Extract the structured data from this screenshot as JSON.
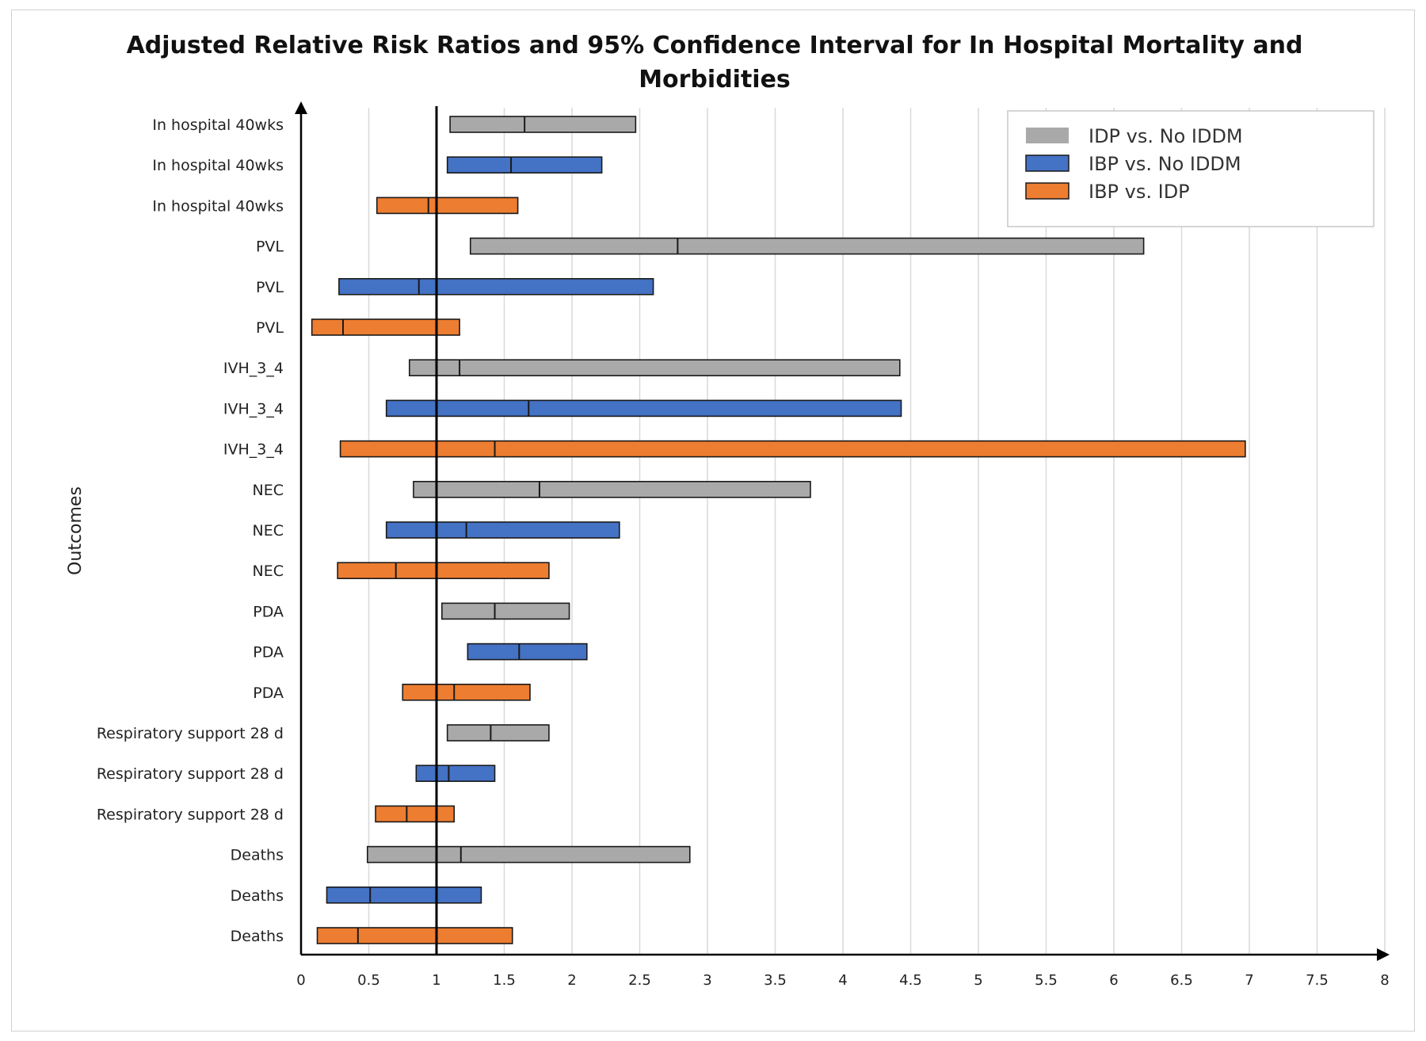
{
  "chart_data": {
    "type": "bar",
    "subtype": "floating-horizontal-interval",
    "title_lines": [
      "Adjusted Relative Risk Ratios and 95% Confidence Interval for In Hospital Mortality and",
      "Morbidities"
    ],
    "xlabel": "",
    "ylabel": "Outcomes",
    "xlim": [
      0,
      8
    ],
    "xticks": [
      0,
      0.5,
      1,
      1.5,
      2,
      2.5,
      3,
      3.5,
      4,
      4.5,
      5,
      5.5,
      6,
      6.5,
      7,
      7.5,
      8
    ],
    "xtick_labels": [
      "0",
      "0.5",
      "1",
      "1.5",
      "2",
      "2.5",
      "3",
      "3.5",
      "4",
      "4.5",
      "5",
      "5.5",
      "6",
      "6.5",
      "7",
      "7.5",
      "8"
    ],
    "reference_line": 1,
    "grid": "vertical",
    "legend_position": "top-right",
    "series": [
      {
        "name": "IDP vs. No IDDM",
        "color": "#a9a9a9"
      },
      {
        "name": "IBP vs. No IDDM",
        "color": "#4472c4"
      },
      {
        "name": "IBP vs. IDP",
        "color": "#ed7d31"
      }
    ],
    "rows": [
      {
        "label": "In hospital 40wks",
        "series": 0,
        "low": 1.1,
        "est": 1.65,
        "high": 2.47
      },
      {
        "label": "In hospital 40wks",
        "series": 1,
        "low": 1.08,
        "est": 1.55,
        "high": 2.22
      },
      {
        "label": "In hospital 40wks",
        "series": 2,
        "low": 0.56,
        "est": 0.94,
        "high": 1.6
      },
      {
        "label": "PVL",
        "series": 0,
        "low": 1.25,
        "est": 2.78,
        "high": 6.22
      },
      {
        "label": "PVL",
        "series": 1,
        "low": 0.28,
        "est": 0.87,
        "high": 2.6
      },
      {
        "label": "PVL",
        "series": 2,
        "low": 0.08,
        "est": 0.31,
        "high": 1.17
      },
      {
        "label": "IVH_3_4",
        "series": 0,
        "low": 0.8,
        "est": 1.17,
        "high": 4.42
      },
      {
        "label": "IVH_3_4",
        "series": 1,
        "low": 0.63,
        "est": 1.68,
        "high": 4.43
      },
      {
        "label": "IVH_3_4",
        "series": 2,
        "low": 0.29,
        "est": 1.43,
        "high": 6.97
      },
      {
        "label": "NEC",
        "series": 0,
        "low": 0.83,
        "est": 1.76,
        "high": 3.76
      },
      {
        "label": "NEC",
        "series": 1,
        "low": 0.63,
        "est": 1.22,
        "high": 2.35
      },
      {
        "label": "NEC",
        "series": 2,
        "low": 0.27,
        "est": 0.7,
        "high": 1.83
      },
      {
        "label": "PDA",
        "series": 0,
        "low": 1.04,
        "est": 1.43,
        "high": 1.98
      },
      {
        "label": "PDA",
        "series": 1,
        "low": 1.23,
        "est": 1.61,
        "high": 2.11
      },
      {
        "label": "PDA",
        "series": 2,
        "low": 0.75,
        "est": 1.13,
        "high": 1.69
      },
      {
        "label": "Respiratory support  28 d",
        "series": 0,
        "low": 1.08,
        "est": 1.4,
        "high": 1.83
      },
      {
        "label": "Respiratory support  28 d",
        "series": 1,
        "low": 0.85,
        "est": 1.09,
        "high": 1.43
      },
      {
        "label": "Respiratory support  28 d",
        "series": 2,
        "low": 0.55,
        "est": 0.78,
        "high": 1.13
      },
      {
        "label": "Deaths",
        "series": 0,
        "low": 0.49,
        "est": 1.18,
        "high": 2.87
      },
      {
        "label": "Deaths",
        "series": 1,
        "low": 0.19,
        "est": 0.51,
        "high": 1.33
      },
      {
        "label": "Deaths",
        "series": 2,
        "low": 0.12,
        "est": 0.42,
        "high": 1.56
      }
    ]
  }
}
